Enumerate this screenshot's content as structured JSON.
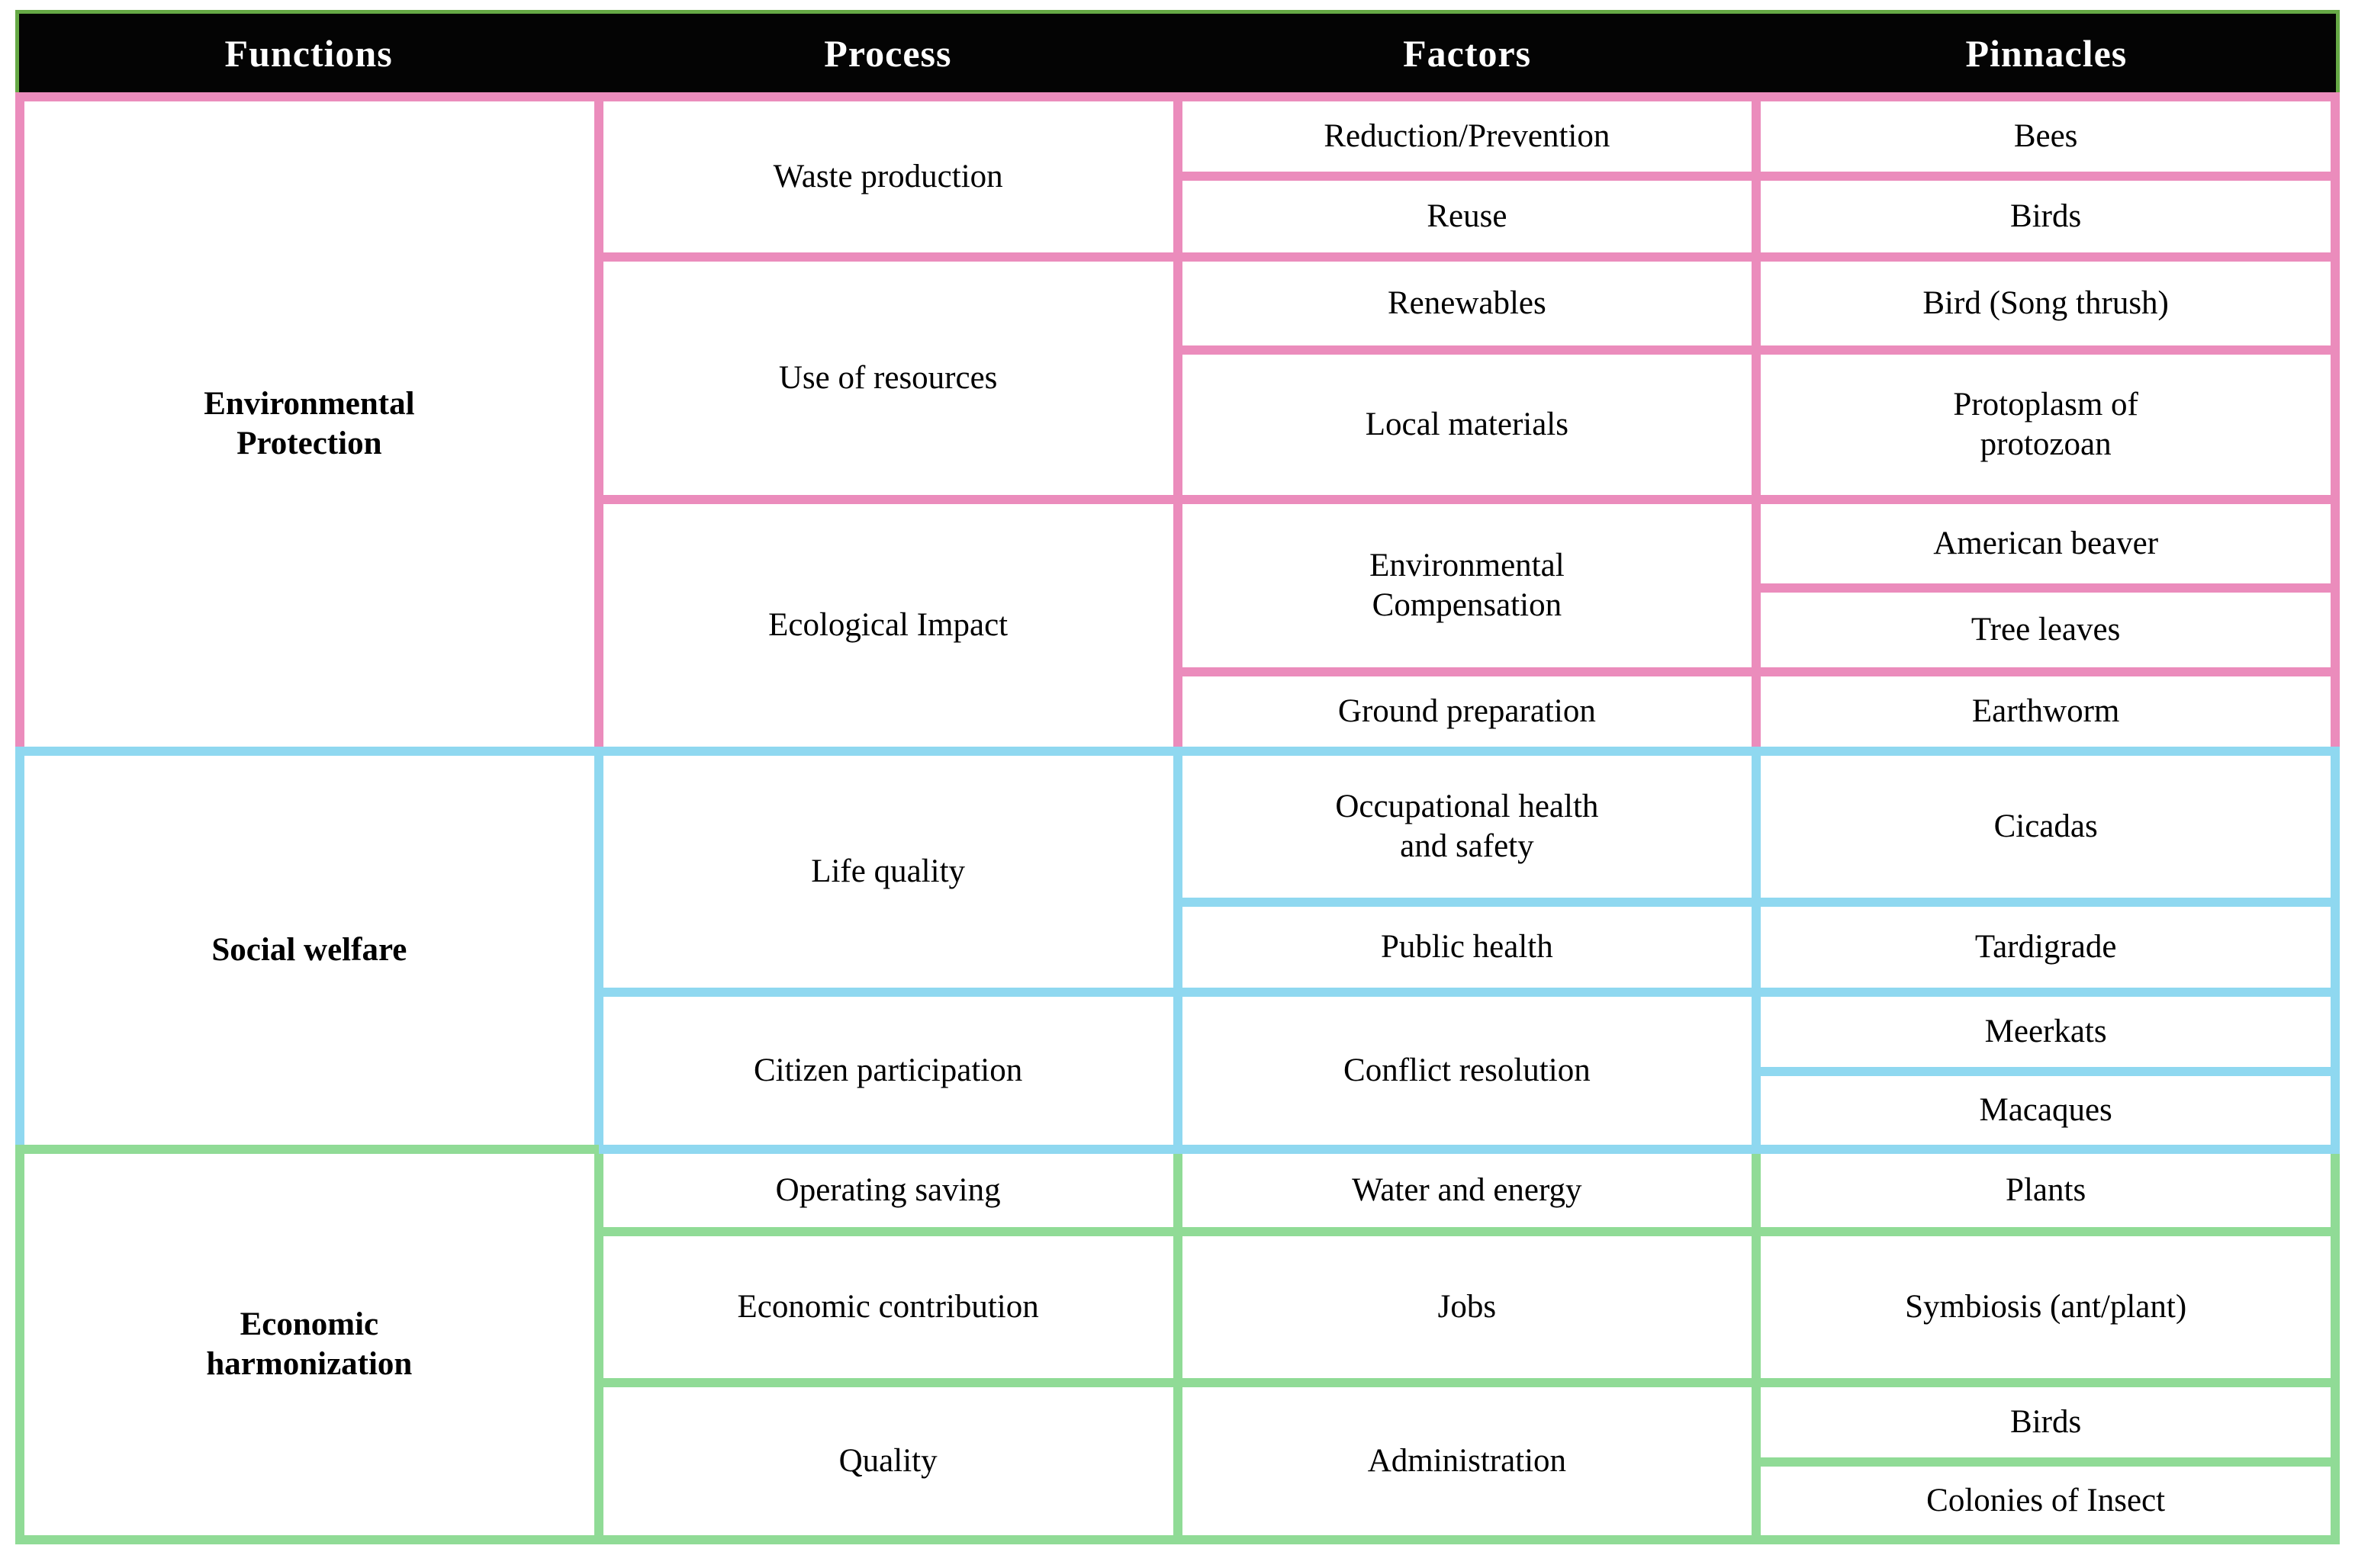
{
  "header": {
    "columns": [
      "Functions",
      "Process",
      "Factors",
      "Pinnacles"
    ]
  },
  "colors": {
    "header_background": "#040404",
    "header_border_green": "#66A946",
    "environmental_pink": "#EB8CBC",
    "social_blue": "#8FD8F0",
    "economic_green": "#90DB96",
    "cell_background": "#FFFFFF",
    "header_text": "#FFFFFF",
    "body_text": "#000000"
  },
  "sections": [
    {
      "function": "Environmental\nProtection",
      "process": [
        "Waste production",
        "Use of resources",
        "Ecological Impact"
      ],
      "factors": [
        "Reduction/Prevention",
        "Reuse",
        "Renewables",
        "Local materials",
        "Environmental\nCompensation",
        "Ground preparation"
      ],
      "pinnacles": [
        "Bees",
        "Birds",
        "Bird (Song thrush)",
        "Protoplasm of\nprotozoan",
        "American beaver",
        "Tree leaves",
        "Earthworm"
      ]
    },
    {
      "function": "Social welfare",
      "process": [
        "Life quality",
        "Citizen participation"
      ],
      "factors": [
        "Occupational health\nand safety",
        "Public health",
        "Conflict resolution"
      ],
      "pinnacles": [
        "Cicadas",
        "Tardigrade",
        "Meerkats",
        "Macaques"
      ]
    },
    {
      "function": "Economic\nharmonization",
      "process": [
        "Operating saving",
        "Economic contribution",
        "Quality"
      ],
      "factors": [
        "Water and energy",
        "Jobs",
        "Administration"
      ],
      "pinnacles": [
        "Plants",
        "Symbiosis (ant/plant)",
        "Birds",
        "Colonies of Insect"
      ]
    }
  ]
}
